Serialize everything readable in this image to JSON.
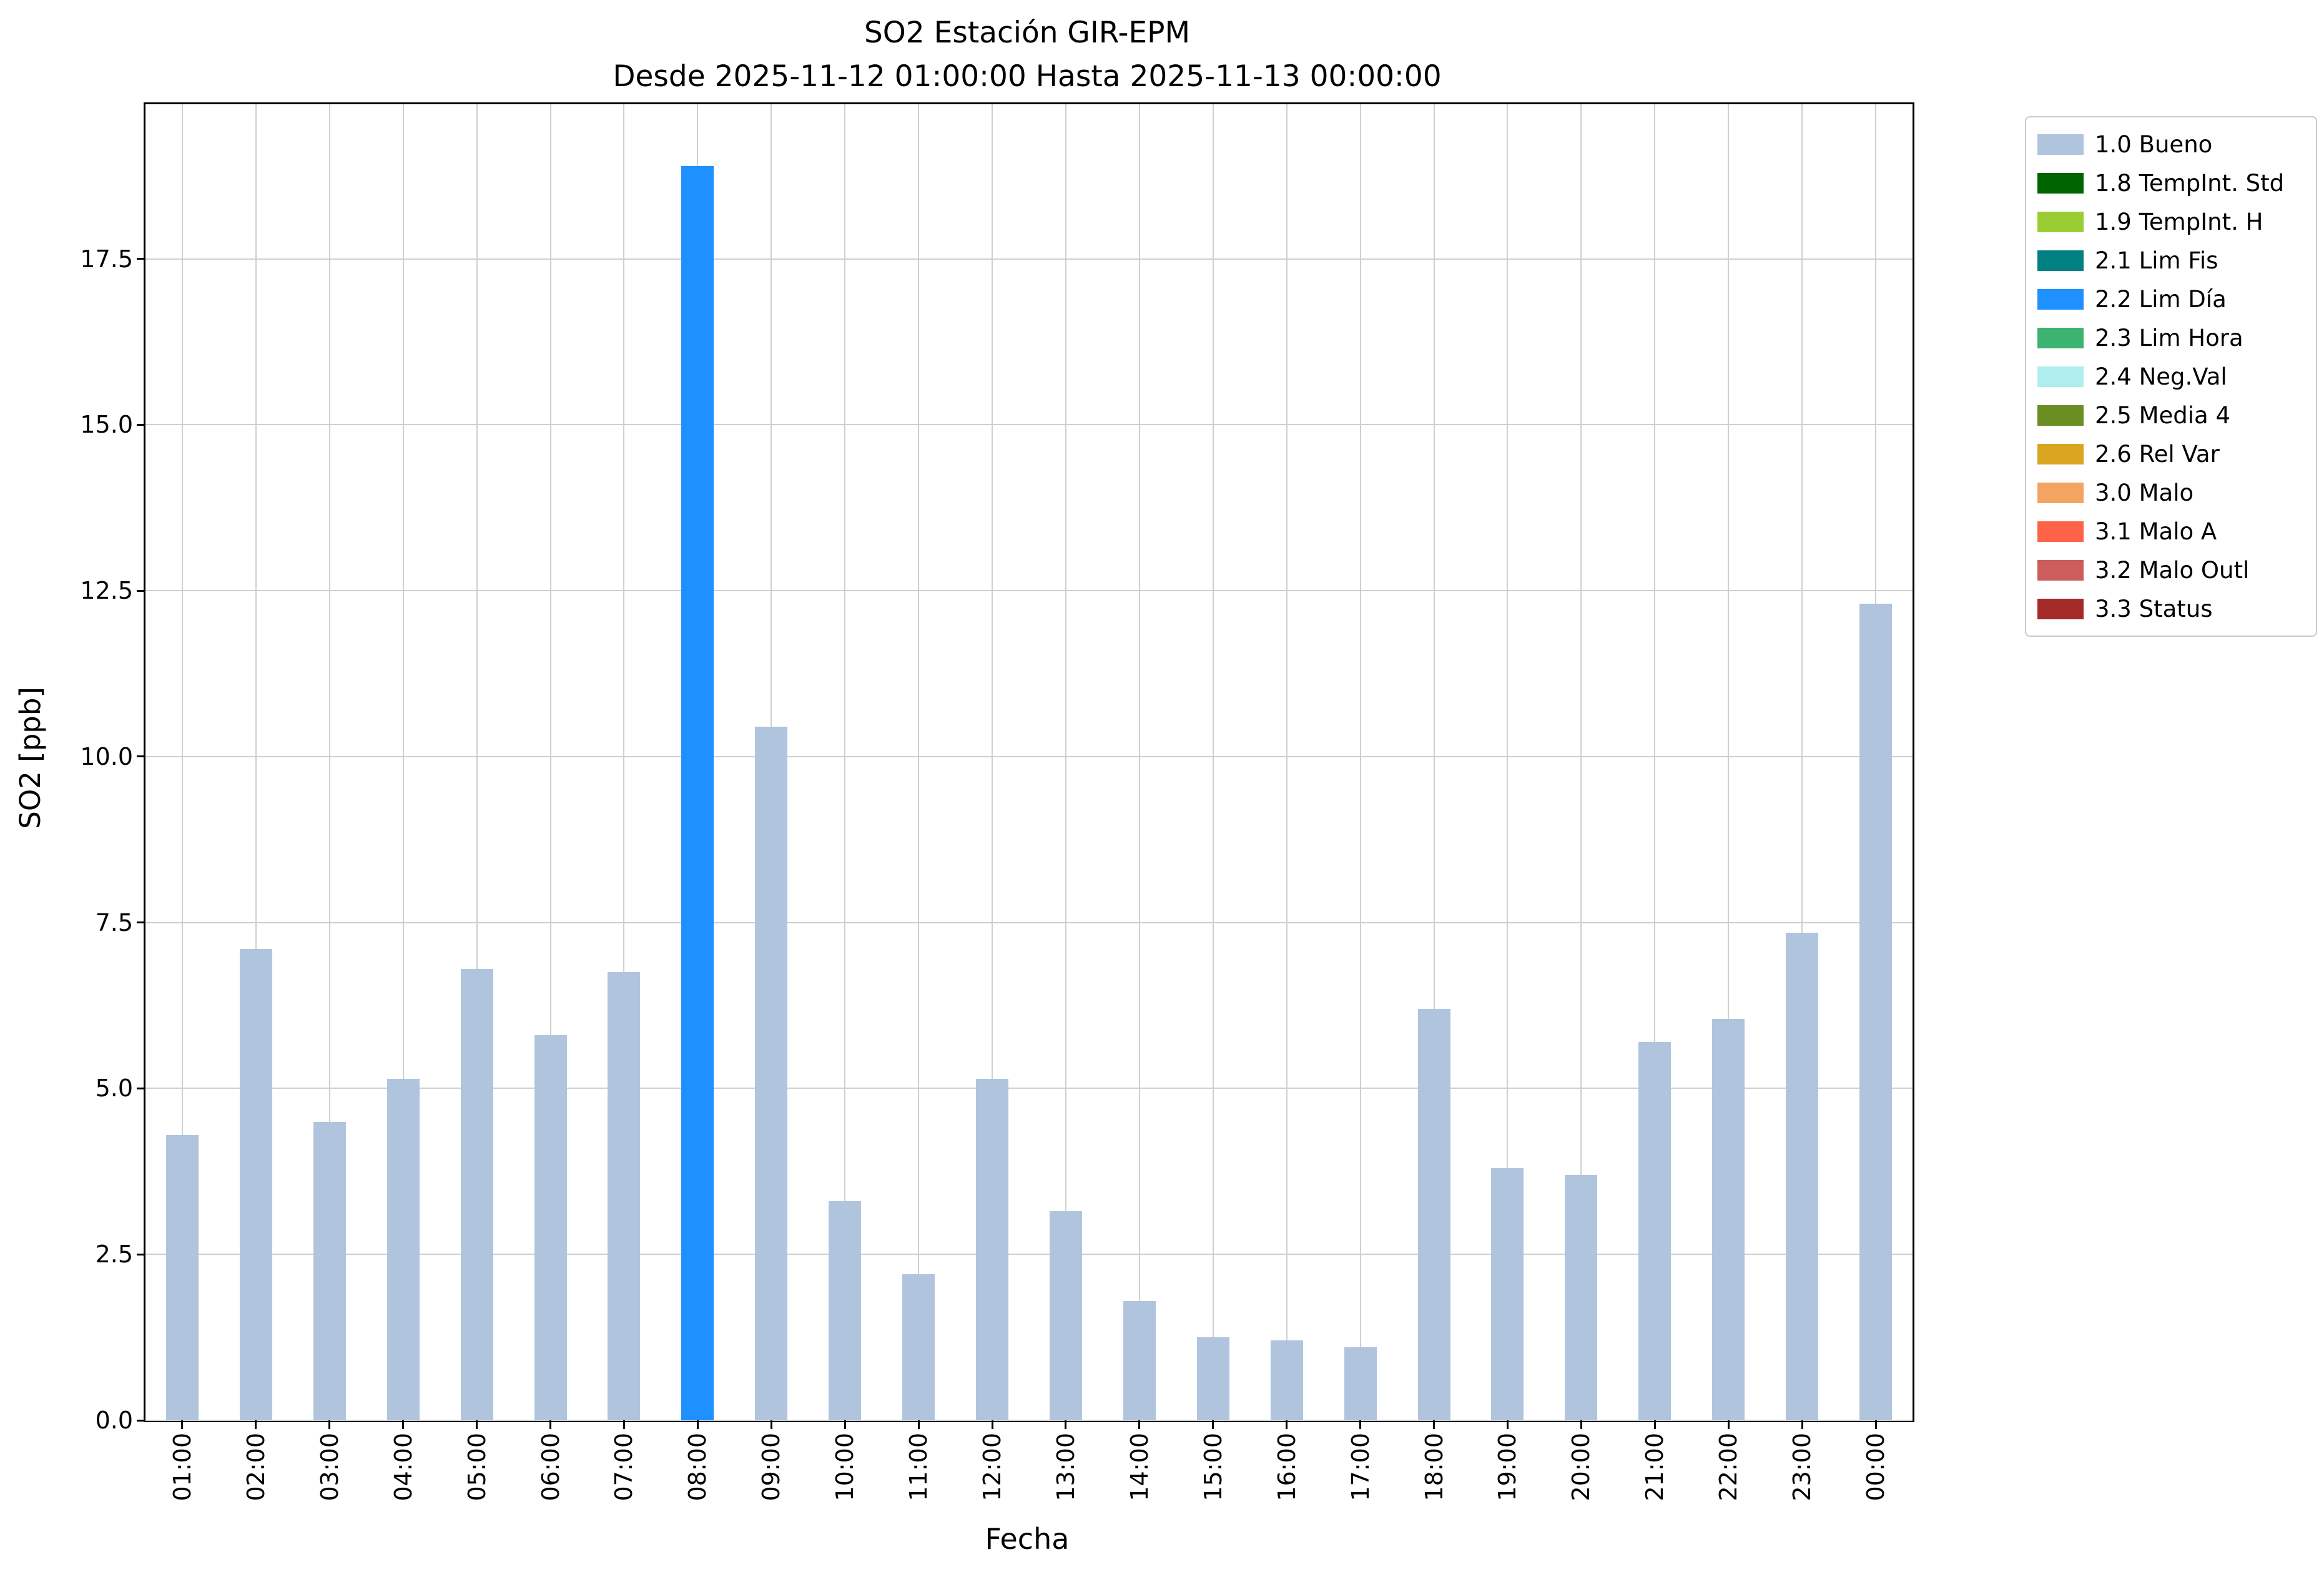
{
  "chart_data": {
    "type": "bar",
    "title": "SO2 Estación GIR-EPM",
    "subtitle": "Desde 2025-11-12 01:00:00 Hasta 2025-11-13 00:00:00",
    "xlabel": "Fecha",
    "ylabel": "SO2 [ppb]",
    "categories": [
      "01:00",
      "02:00",
      "03:00",
      "04:00",
      "05:00",
      "06:00",
      "07:00",
      "08:00",
      "09:00",
      "10:00",
      "11:00",
      "12:00",
      "13:00",
      "14:00",
      "15:00",
      "16:00",
      "17:00",
      "18:00",
      "19:00",
      "20:00",
      "21:00",
      "22:00",
      "23:00",
      "00:00"
    ],
    "values": [
      4.3,
      7.1,
      4.5,
      5.15,
      6.8,
      5.8,
      6.75,
      18.9,
      10.45,
      3.3,
      2.2,
      5.15,
      3.15,
      1.8,
      1.25,
      1.2,
      1.1,
      6.2,
      3.8,
      3.7,
      5.7,
      6.05,
      7.35,
      12.3
    ],
    "bar_status": [
      "1.0 Bueno",
      "1.0 Bueno",
      "1.0 Bueno",
      "1.0 Bueno",
      "1.0 Bueno",
      "1.0 Bueno",
      "1.0 Bueno",
      "2.2 Lim Día",
      "1.0 Bueno",
      "1.0 Bueno",
      "1.0 Bueno",
      "1.0 Bueno",
      "1.0 Bueno",
      "1.0 Bueno",
      "1.0 Bueno",
      "1.0 Bueno",
      "1.0 Bueno",
      "1.0 Bueno",
      "1.0 Bueno",
      "1.0 Bueno",
      "1.0 Bueno",
      "1.0 Bueno",
      "1.0 Bueno",
      "1.0 Bueno"
    ],
    "default_bar_color": "#b0c4de",
    "highlight_bar": {
      "index": 7,
      "color": "#1e90ff",
      "status": "2.2 Lim Día"
    },
    "ylim": [
      0,
      19.83
    ],
    "yticks": [
      0.0,
      2.5,
      5.0,
      7.5,
      10.0,
      12.5,
      15.0,
      17.5
    ],
    "ytick_labels": [
      "0.0",
      "2.5",
      "5.0",
      "7.5",
      "10.0",
      "12.5",
      "15.0",
      "17.5"
    ],
    "grid": true,
    "legend": {
      "position": "outside-right",
      "entries": [
        {
          "label": "1.0 Bueno",
          "color": "#b0c4de"
        },
        {
          "label": "1.8 TempInt. Std",
          "color": "#006400"
        },
        {
          "label": "1.9 TempInt. H",
          "color": "#9acd32"
        },
        {
          "label": "2.1 Lim Fis",
          "color": "#008080"
        },
        {
          "label": "2.2 Lim Día",
          "color": "#1e90ff"
        },
        {
          "label": "2.3 Lim Hora",
          "color": "#3cb371"
        },
        {
          "label": "2.4 Neg.Val",
          "color": "#afeeee"
        },
        {
          "label": "2.5 Media 4",
          "color": "#6b8e23"
        },
        {
          "label": "2.6 Rel Var",
          "color": "#daa520"
        },
        {
          "label": "3.0 Malo",
          "color": "#f4a460"
        },
        {
          "label": "3.1 Malo A",
          "color": "#ff6347"
        },
        {
          "label": "3.2 Malo Outl",
          "color": "#cd5c5c"
        },
        {
          "label": "3.3 Status",
          "color": "#a52a2a"
        }
      ]
    }
  }
}
